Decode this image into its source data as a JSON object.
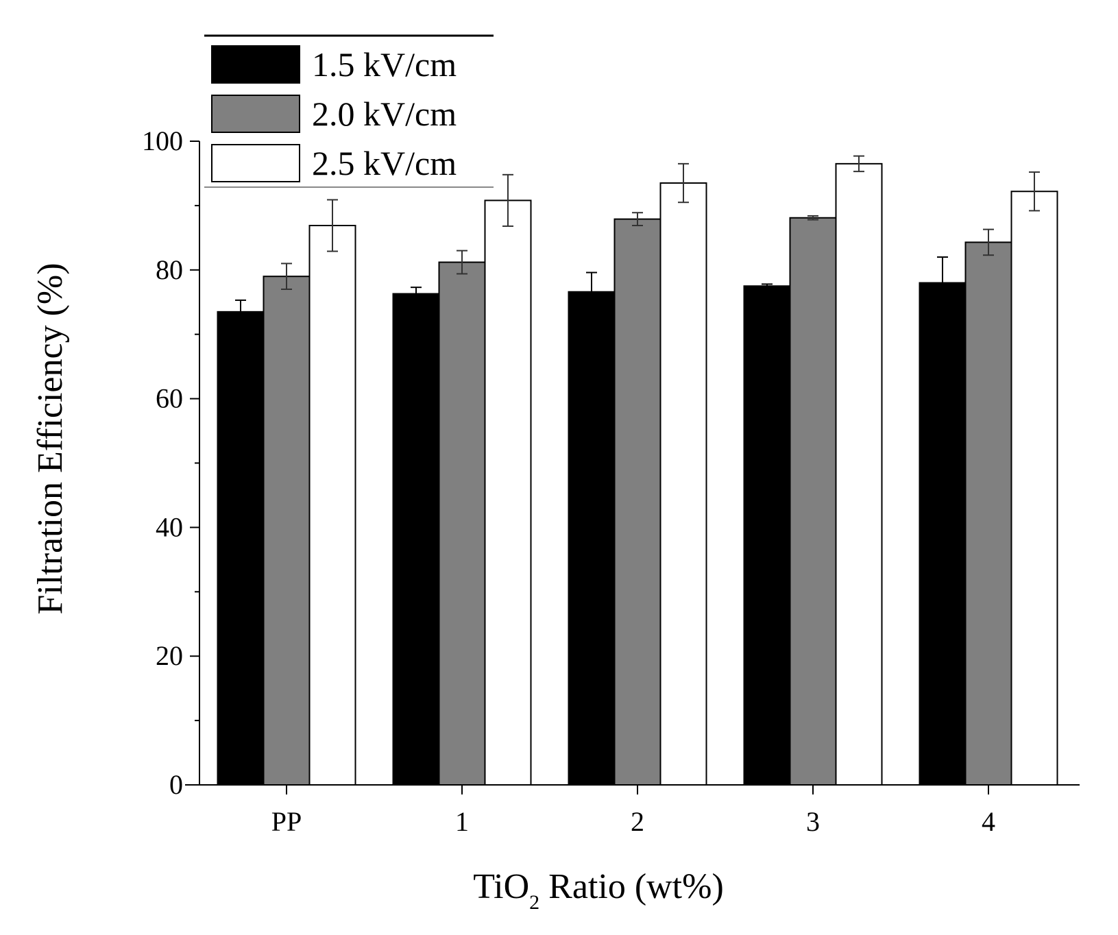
{
  "chart_data": {
    "type": "bar",
    "title": "",
    "xlabel": "TiO2 Ratio (wt%)",
    "xlabel_parts": {
      "main": "TiO",
      "subscript": "2",
      "rest": " Ratio (wt%)"
    },
    "ylabel": "Filtration Efficiency (%)",
    "ylim": [
      0,
      100
    ],
    "yticks": [
      0,
      20,
      40,
      60,
      80,
      100
    ],
    "ytick_labels": [
      "0",
      "20",
      "40",
      "60",
      "80",
      "100"
    ],
    "categories": [
      "PP",
      "1",
      "2",
      "3",
      "4"
    ],
    "series": [
      {
        "name": "1.5 kV/cm",
        "color": "#000000",
        "values": [
          73.5,
          76.3,
          76.6,
          77.5,
          78.0
        ],
        "errors": [
          1.8,
          1.0,
          3.0,
          0.3,
          4.0
        ]
      },
      {
        "name": "2.0 kV/cm",
        "color": "#808080",
        "values": [
          79.0,
          81.2,
          87.9,
          88.1,
          84.3
        ],
        "errors": [
          2.0,
          1.8,
          1.0,
          0.3,
          2.0
        ]
      },
      {
        "name": "2.5 kV/cm",
        "color": "#ffffff",
        "values": [
          86.9,
          90.8,
          93.5,
          96.5,
          92.2
        ],
        "errors": [
          4.0,
          4.0,
          3.0,
          1.2,
          3.0
        ]
      }
    ],
    "legend_labels": [
      "1.5 kV/cm",
      "2.0 kV/cm",
      "2.5 kV/cm"
    ],
    "legend_position": "top-left",
    "grid": false
  }
}
